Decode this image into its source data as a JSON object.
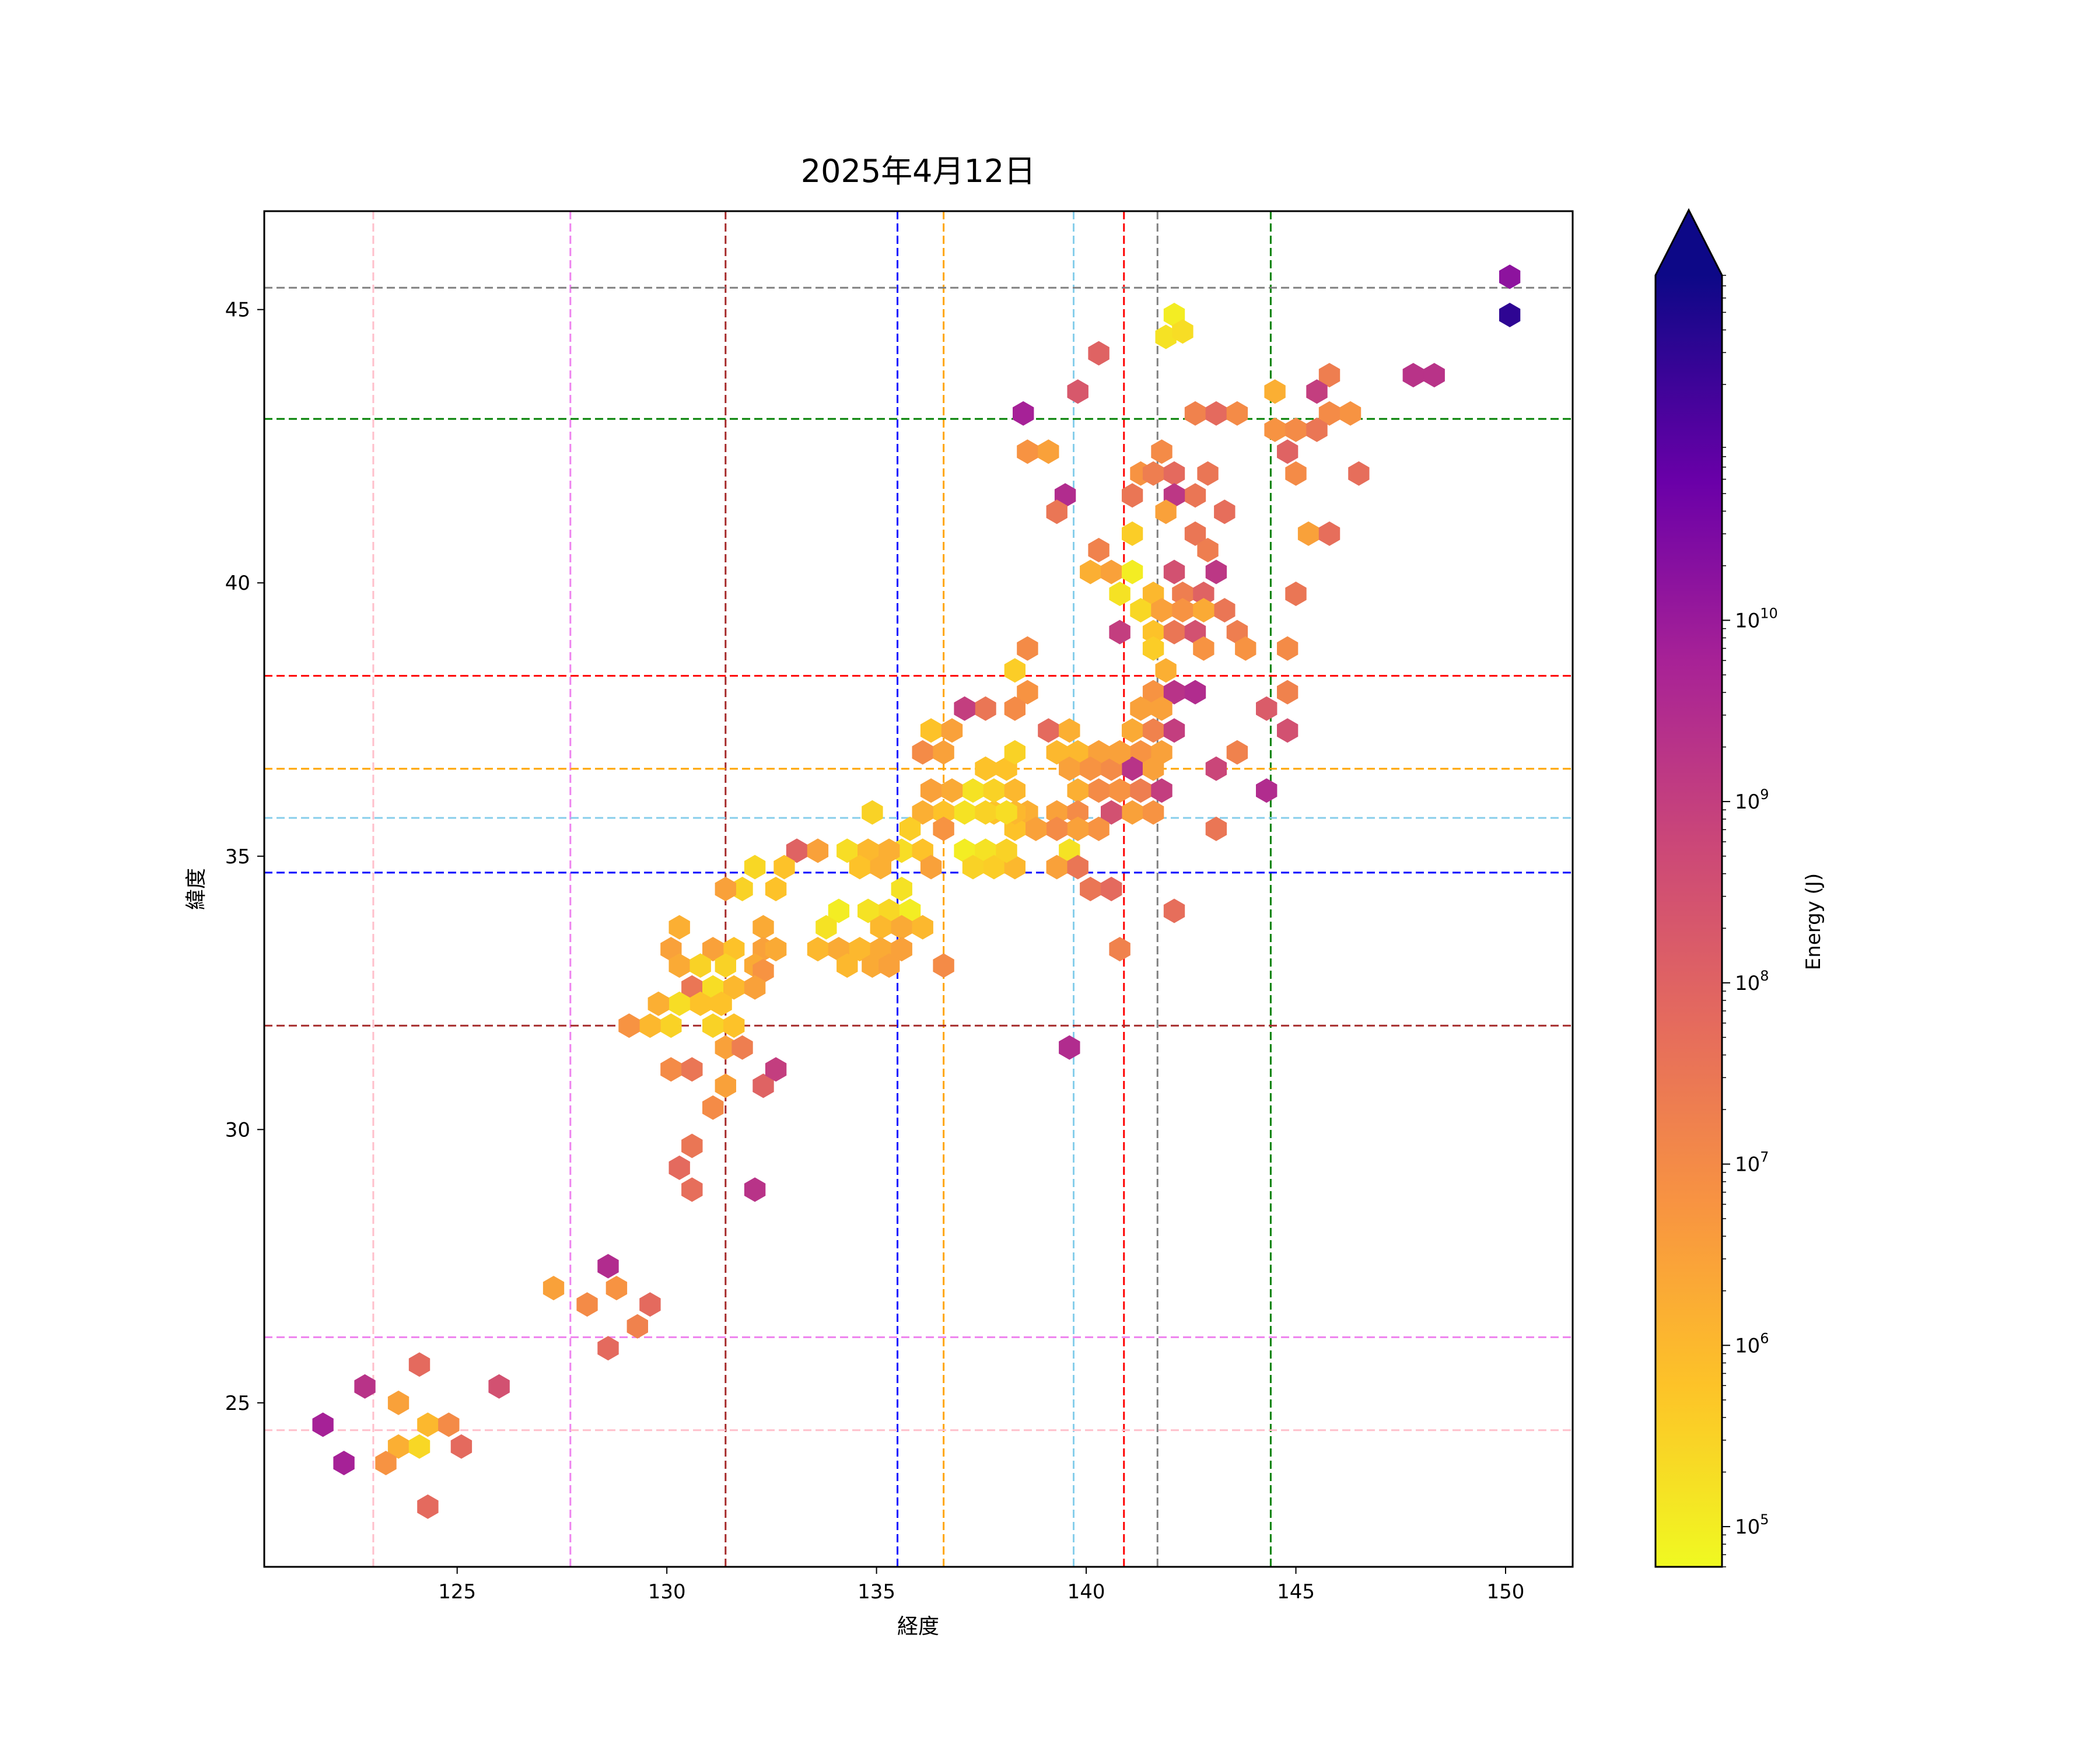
{
  "chart_data": {
    "type": "heatmap",
    "subtype": "hexbin",
    "title": "2025年4月12日",
    "xlabel": "経度",
    "ylabel": "緯度",
    "xlim": [
      120.4,
      151.6
    ],
    "ylim": [
      22.0,
      46.8
    ],
    "xticks": [
      125,
      130,
      135,
      140,
      145,
      150
    ],
    "yticks": [
      25,
      30,
      35,
      40,
      45
    ],
    "grid": false,
    "colorbar": {
      "label": "Energy (J)",
      "scale": "log",
      "colormap": "plasma_r",
      "range": [
        60000,
        800000000000
      ],
      "extend": "max",
      "tick_exponents": [
        5,
        6,
        7,
        8,
        9,
        10
      ],
      "tick_base": "10",
      "colors": [
        "#f0f921",
        "#fca636",
        "#e16462",
        "#b12a90",
        "#6a00a8",
        "#0d0887"
      ]
    },
    "reference_lines": {
      "vertical": [
        {
          "x": 123.0,
          "color": "#ffc0cb"
        },
        {
          "x": 127.7,
          "color": "#ee82ee"
        },
        {
          "x": 131.4,
          "color": "#a52a2a"
        },
        {
          "x": 135.5,
          "color": "#0000ff"
        },
        {
          "x": 136.6,
          "color": "#ffa500"
        },
        {
          "x": 139.7,
          "color": "#87ceeb"
        },
        {
          "x": 140.9,
          "color": "#ff0000"
        },
        {
          "x": 141.7,
          "color": "#808080"
        },
        {
          "x": 144.4,
          "color": "#008000"
        }
      ],
      "horizontal": [
        {
          "y": 45.4,
          "color": "#808080"
        },
        {
          "y": 43.0,
          "color": "#008000"
        },
        {
          "y": 38.3,
          "color": "#ff0000"
        },
        {
          "y": 36.6,
          "color": "#ffa500"
        },
        {
          "y": 35.7,
          "color": "#87ceeb"
        },
        {
          "y": 34.7,
          "color": "#0000ff"
        },
        {
          "y": 31.9,
          "color": "#a52a2a"
        },
        {
          "y": 26.2,
          "color": "#ee82ee"
        },
        {
          "y": 24.5,
          "color": "#ffc0cb"
        }
      ]
    },
    "hexbins": [
      [
        150.1,
        45.6,
        10.2
      ],
      [
        150.1,
        44.9,
        11.5
      ],
      [
        147.8,
        43.8,
        9.3
      ],
      [
        148.3,
        43.8,
        9.3
      ],
      [
        145.8,
        43.8,
        7.3
      ],
      [
        145.8,
        43.1,
        7.0
      ],
      [
        146.3,
        43.1,
        6.8
      ],
      [
        145.5,
        43.5,
        9.0
      ],
      [
        144.5,
        43.5,
        6.2
      ],
      [
        144.5,
        42.8,
        6.8
      ],
      [
        145.0,
        42.8,
        7.0
      ],
      [
        145.5,
        42.8,
        7.5
      ],
      [
        144.8,
        42.4,
        8.0
      ],
      [
        145.0,
        42.0,
        7.0
      ],
      [
        146.5,
        42.0,
        7.7
      ],
      [
        145.3,
        40.9,
        6.5
      ],
      [
        145.8,
        40.9,
        7.7
      ],
      [
        145.0,
        39.8,
        7.5
      ],
      [
        144.8,
        38.8,
        7.0
      ],
      [
        144.8,
        38.0,
        7.2
      ],
      [
        144.3,
        37.7,
        8.2
      ],
      [
        144.8,
        37.3,
        8.5
      ],
      [
        144.3,
        36.2,
        9.5
      ],
      [
        142.6,
        43.1,
        7.2
      ],
      [
        143.1,
        43.1,
        7.8
      ],
      [
        143.6,
        43.1,
        7.0
      ],
      [
        142.1,
        44.9,
        5.0
      ],
      [
        141.9,
        44.5,
        5.2
      ],
      [
        142.3,
        44.6,
        5.3
      ],
      [
        140.3,
        44.2,
        8.0
      ],
      [
        139.8,
        43.5,
        8.3
      ],
      [
        138.5,
        43.1,
        9.8
      ],
      [
        138.6,
        42.4,
        6.8
      ],
      [
        139.1,
        42.4,
        6.5
      ],
      [
        139.5,
        41.6,
        9.5
      ],
      [
        139.3,
        41.3,
        7.5
      ],
      [
        141.3,
        42.0,
        6.8
      ],
      [
        141.8,
        42.4,
        7.0
      ],
      [
        141.6,
        42.0,
        7.3
      ],
      [
        142.1,
        42.0,
        7.8
      ],
      [
        142.9,
        42.0,
        7.5
      ],
      [
        141.1,
        41.6,
        7.5
      ],
      [
        142.6,
        41.6,
        7.5
      ],
      [
        142.1,
        41.6,
        9.2
      ],
      [
        141.9,
        41.3,
        6.5
      ],
      [
        141.1,
        40.9,
        5.6
      ],
      [
        142.6,
        40.9,
        7.5
      ],
      [
        143.3,
        41.3,
        7.7
      ],
      [
        142.9,
        40.6,
        7.3
      ],
      [
        140.3,
        40.6,
        7.2
      ],
      [
        140.1,
        40.2,
        6.2
      ],
      [
        140.6,
        40.2,
        6.5
      ],
      [
        141.1,
        40.2,
        5.0
      ],
      [
        140.8,
        39.8,
        5.2
      ],
      [
        141.6,
        39.8,
        6.0
      ],
      [
        142.1,
        40.2,
        8.5
      ],
      [
        142.3,
        39.8,
        7.3
      ],
      [
        142.8,
        39.8,
        8.0
      ],
      [
        143.1,
        40.2,
        9.2
      ],
      [
        143.3,
        39.5,
        7.5
      ],
      [
        141.3,
        39.5,
        5.4
      ],
      [
        141.8,
        39.5,
        6.5
      ],
      [
        142.3,
        39.5,
        6.8
      ],
      [
        142.8,
        39.5,
        6.3
      ],
      [
        141.6,
        39.1,
        5.8
      ],
      [
        142.1,
        39.1,
        7.5
      ],
      [
        142.6,
        39.1,
        8.5
      ],
      [
        143.6,
        39.1,
        7.3
      ],
      [
        140.8,
        39.1,
        9.0
      ],
      [
        141.6,
        38.8,
        5.6
      ],
      [
        142.8,
        38.8,
        6.8
      ],
      [
        143.8,
        38.8,
        6.8
      ],
      [
        141.9,
        38.4,
        6.2
      ],
      [
        141.6,
        38.0,
        6.8
      ],
      [
        142.1,
        38.0,
        9.3
      ],
      [
        142.6,
        38.0,
        9.5
      ],
      [
        141.3,
        37.7,
        6.5
      ],
      [
        141.8,
        37.7,
        6.5
      ],
      [
        141.1,
        37.3,
        6.3
      ],
      [
        141.6,
        37.3,
        7.2
      ],
      [
        142.1,
        37.3,
        9.0
      ],
      [
        141.3,
        36.9,
        6.8
      ],
      [
        141.8,
        36.9,
        6.5
      ],
      [
        141.1,
        36.6,
        9.3
      ],
      [
        141.6,
        36.6,
        6.5
      ],
      [
        143.1,
        36.6,
        8.8
      ],
      [
        143.6,
        36.9,
        7.2
      ],
      [
        140.6,
        36.6,
        7.0
      ],
      [
        140.8,
        36.2,
        6.8
      ],
      [
        141.3,
        36.2,
        7.3
      ],
      [
        141.8,
        36.2,
        9.0
      ],
      [
        140.3,
        36.2,
        7.0
      ],
      [
        141.1,
        35.8,
        6.5
      ],
      [
        141.6,
        35.8,
        6.8
      ],
      [
        140.6,
        35.8,
        8.5
      ],
      [
        143.1,
        35.5,
        7.5
      ],
      [
        142.1,
        34.0,
        7.7
      ],
      [
        138.6,
        38.8,
        7.0
      ],
      [
        138.3,
        38.4,
        5.6
      ],
      [
        138.6,
        38.0,
        6.8
      ],
      [
        138.3,
        37.7,
        7.0
      ],
      [
        137.6,
        37.7,
        7.5
      ],
      [
        137.1,
        37.7,
        9.0
      ],
      [
        139.1,
        37.3,
        7.8
      ],
      [
        139.6,
        37.3,
        6.2
      ],
      [
        139.3,
        36.9,
        6.0
      ],
      [
        139.8,
        36.9,
        6.0
      ],
      [
        140.3,
        36.9,
        6.5
      ],
      [
        140.8,
        36.9,
        6.5
      ],
      [
        139.6,
        36.6,
        6.5
      ],
      [
        140.1,
        36.6,
        6.8
      ],
      [
        139.8,
        36.2,
        6.2
      ],
      [
        139.3,
        35.8,
        6.5
      ],
      [
        139.8,
        35.8,
        7.0
      ],
      [
        140.3,
        35.5,
        6.8
      ],
      [
        139.8,
        35.5,
        6.5
      ],
      [
        139.3,
        35.5,
        7.0
      ],
      [
        139.6,
        35.1,
        5.2
      ],
      [
        138.6,
        35.8,
        6.2
      ],
      [
        138.8,
        35.5,
        6.5
      ],
      [
        138.3,
        35.5,
        5.8
      ],
      [
        137.8,
        35.8,
        5.8
      ],
      [
        138.3,
        35.8,
        6.0
      ],
      [
        137.6,
        36.6,
        5.8
      ],
      [
        138.1,
        36.6,
        5.8
      ],
      [
        138.3,
        36.9,
        5.5
      ],
      [
        137.3,
        36.2,
        5.2
      ],
      [
        137.8,
        36.2,
        5.5
      ],
      [
        138.3,
        36.2,
        6.0
      ],
      [
        137.1,
        35.8,
        5.2
      ],
      [
        137.6,
        35.8,
        5.5
      ],
      [
        138.1,
        35.8,
        5.3
      ],
      [
        136.8,
        36.2,
        6.3
      ],
      [
        136.3,
        36.2,
        6.5
      ],
      [
        136.6,
        35.8,
        5.8
      ],
      [
        136.1,
        35.8,
        6.2
      ],
      [
        136.1,
        36.9,
        7.0
      ],
      [
        136.6,
        36.9,
        6.5
      ],
      [
        136.3,
        37.3,
        5.8
      ],
      [
        136.8,
        37.3,
        6.5
      ],
      [
        136.6,
        35.5,
        6.8
      ],
      [
        135.8,
        35.5,
        5.6
      ],
      [
        135.6,
        35.1,
        5.3
      ],
      [
        136.1,
        35.1,
        5.8
      ],
      [
        136.3,
        34.8,
        6.5
      ],
      [
        137.1,
        35.1,
        5.0
      ],
      [
        137.6,
        35.1,
        5.2
      ],
      [
        137.3,
        34.8,
        5.5
      ],
      [
        137.8,
        34.8,
        5.6
      ],
      [
        138.3,
        34.8,
        6.0
      ],
      [
        138.1,
        35.1,
        5.5
      ],
      [
        139.3,
        34.8,
        6.5
      ],
      [
        139.8,
        34.8,
        7.5
      ],
      [
        140.1,
        34.4,
        7.5
      ],
      [
        140.6,
        34.4,
        7.8
      ],
      [
        140.8,
        33.3,
        7.2
      ],
      [
        139.6,
        31.5,
        9.5
      ],
      [
        136.6,
        33.0,
        7.0
      ],
      [
        134.9,
        35.8,
        5.5
      ],
      [
        134.3,
        35.1,
        5.3
      ],
      [
        134.8,
        35.1,
        6.0
      ],
      [
        135.3,
        35.1,
        6.2
      ],
      [
        134.6,
        34.8,
        5.8
      ],
      [
        135.1,
        34.8,
        6.2
      ],
      [
        135.6,
        34.4,
        5.2
      ],
      [
        135.3,
        34.0,
        5.4
      ],
      [
        135.8,
        34.0,
        5.0
      ],
      [
        134.1,
        34.0,
        5.0
      ],
      [
        134.8,
        34.0,
        5.2
      ],
      [
        133.8,
        33.7,
        5.2
      ],
      [
        135.1,
        33.7,
        6.0
      ],
      [
        135.6,
        33.7,
        6.3
      ],
      [
        136.1,
        33.7,
        6.0
      ],
      [
        133.6,
        33.3,
        6.0
      ],
      [
        134.1,
        33.3,
        6.3
      ],
      [
        134.6,
        33.3,
        6.0
      ],
      [
        135.1,
        33.3,
        6.3
      ],
      [
        135.6,
        33.3,
        6.5
      ],
      [
        134.3,
        33.0,
        6.0
      ],
      [
        134.9,
        33.0,
        6.3
      ],
      [
        135.3,
        33.0,
        6.5
      ],
      [
        133.1,
        35.1,
        8.0
      ],
      [
        133.6,
        35.1,
        6.5
      ],
      [
        132.8,
        34.8,
        5.8
      ],
      [
        132.1,
        34.8,
        5.4
      ],
      [
        131.8,
        34.4,
        5.5
      ],
      [
        131.4,
        34.4,
        6.5
      ],
      [
        132.6,
        34.4,
        5.8
      ],
      [
        132.3,
        33.7,
        6.3
      ],
      [
        132.3,
        33.3,
        6.5
      ],
      [
        132.6,
        33.3,
        6.3
      ],
      [
        132.1,
        33.0,
        6.3
      ],
      [
        132.3,
        32.9,
        6.8
      ],
      [
        131.6,
        33.3,
        5.8
      ],
      [
        131.1,
        33.3,
        6.5
      ],
      [
        130.3,
        33.7,
        6.2
      ],
      [
        130.1,
        33.3,
        6.5
      ],
      [
        130.3,
        33.0,
        6.3
      ],
      [
        130.6,
        32.6,
        7.5
      ],
      [
        130.8,
        33.0,
        5.5
      ],
      [
        131.4,
        33.0,
        5.5
      ],
      [
        131.1,
        32.6,
        5.3
      ],
      [
        131.6,
        32.6,
        6.0
      ],
      [
        132.1,
        32.6,
        6.5
      ],
      [
        130.8,
        32.3,
        5.8
      ],
      [
        131.3,
        32.3,
        5.8
      ],
      [
        131.1,
        31.9,
        5.5
      ],
      [
        131.6,
        31.9,
        5.8
      ],
      [
        130.3,
        32.3,
        5.3
      ],
      [
        129.8,
        32.3,
        6.2
      ],
      [
        130.1,
        31.9,
        5.5
      ],
      [
        129.6,
        31.9,
        6.0
      ],
      [
        129.1,
        31.9,
        6.8
      ],
      [
        131.4,
        31.5,
        6.5
      ],
      [
        131.8,
        31.5,
        7.3
      ],
      [
        130.1,
        31.1,
        7.0
      ],
      [
        130.6,
        31.1,
        7.5
      ],
      [
        131.4,
        30.8,
        6.5
      ],
      [
        131.1,
        30.4,
        7.0
      ],
      [
        132.3,
        30.8,
        8.0
      ],
      [
        132.6,
        31.1,
        9.0
      ],
      [
        130.6,
        29.7,
        7.5
      ],
      [
        130.3,
        29.3,
        7.8
      ],
      [
        130.6,
        28.9,
        7.7
      ],
      [
        132.1,
        28.9,
        9.3
      ],
      [
        127.3,
        27.1,
        6.5
      ],
      [
        128.1,
        26.8,
        7.0
      ],
      [
        128.6,
        27.5,
        9.5
      ],
      [
        128.8,
        27.1,
        6.8
      ],
      [
        129.6,
        26.8,
        7.8
      ],
      [
        129.3,
        26.4,
        7.2
      ],
      [
        128.6,
        26.0,
        7.8
      ],
      [
        126.0,
        25.3,
        8.5
      ],
      [
        124.1,
        25.7,
        7.8
      ],
      [
        122.8,
        25.3,
        9.3
      ],
      [
        121.8,
        24.6,
        9.8
      ],
      [
        122.3,
        23.9,
        9.8
      ],
      [
        123.6,
        25.0,
        6.5
      ],
      [
        123.6,
        24.2,
        6.2
      ],
      [
        123.3,
        23.9,
        6.8
      ],
      [
        124.1,
        24.2,
        5.4
      ],
      [
        124.3,
        24.6,
        6.0
      ],
      [
        124.8,
        24.6,
        7.0
      ],
      [
        125.1,
        24.2,
        7.8
      ],
      [
        124.3,
        23.1,
        7.8
      ]
    ]
  }
}
